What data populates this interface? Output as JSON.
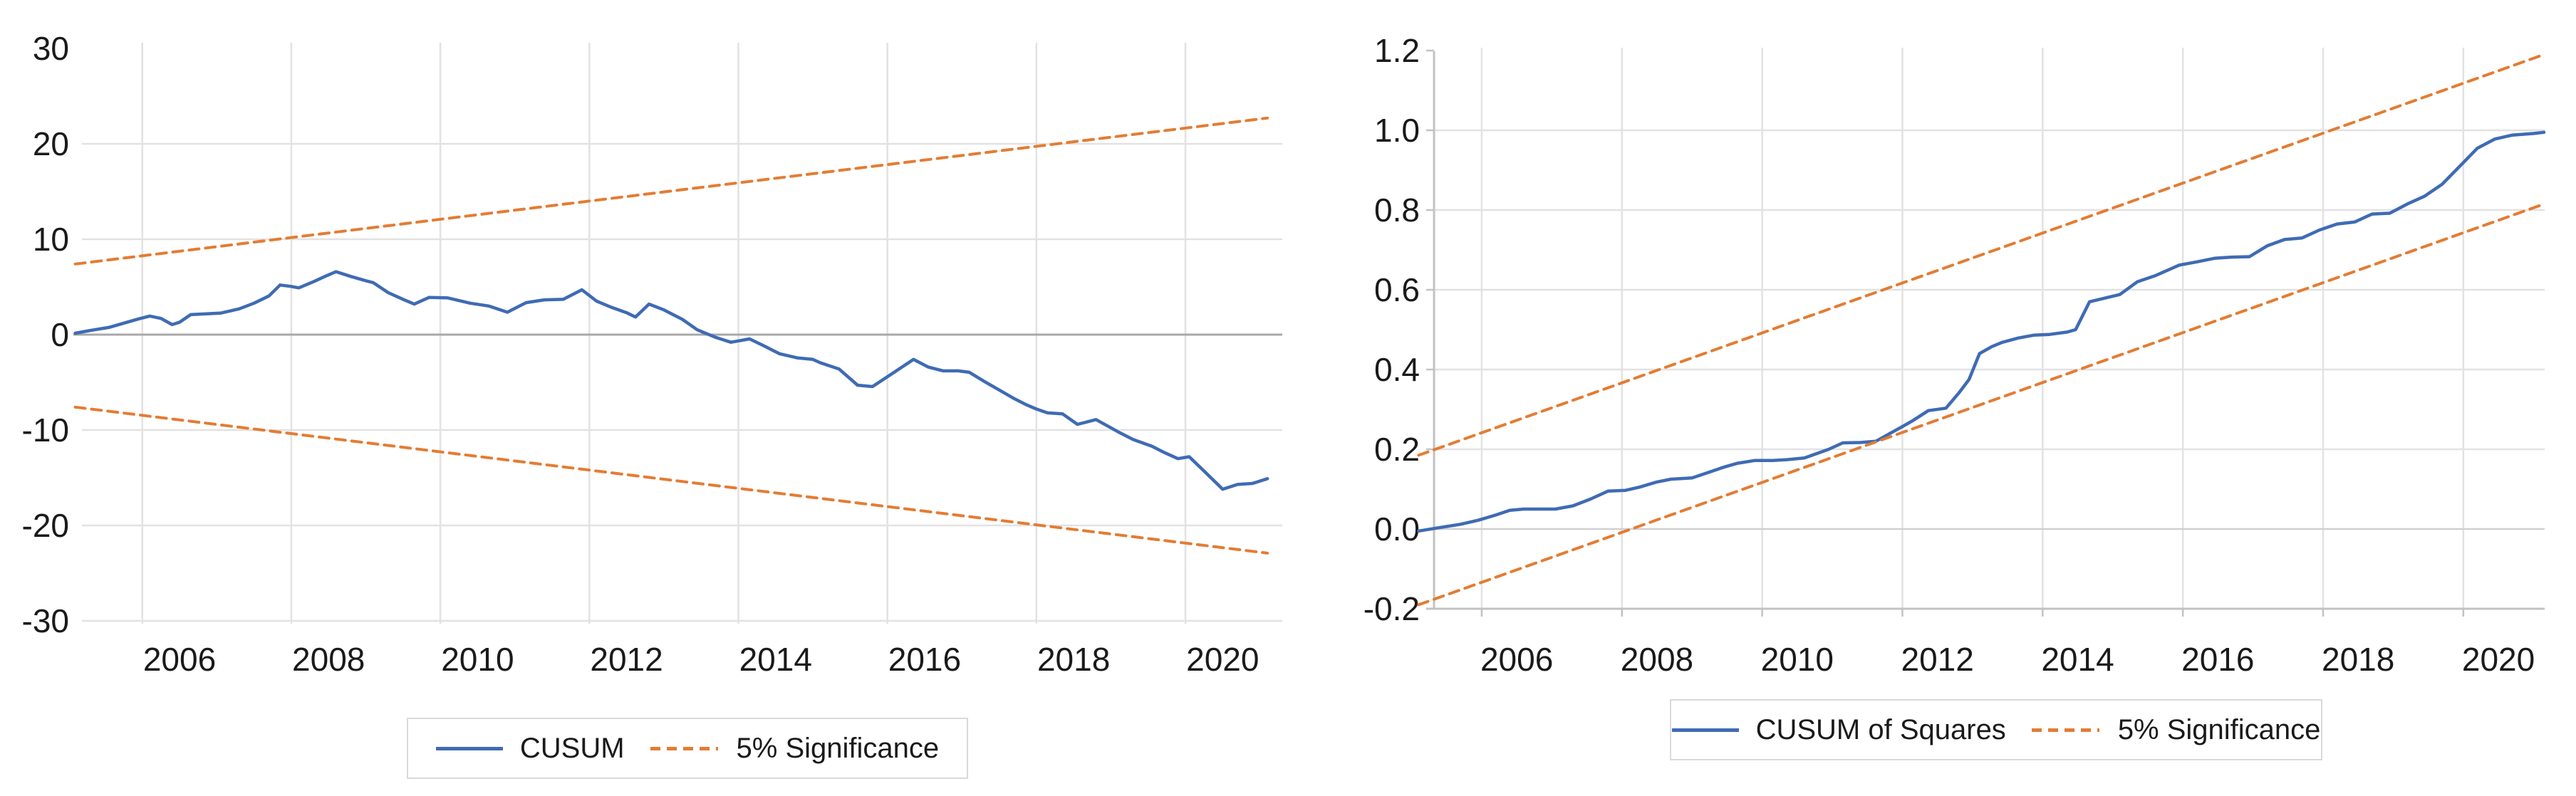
{
  "page": {
    "background": "#FFFFFF"
  },
  "colors": {
    "series_blue": "#3F6BB4",
    "series_orange": "#E37C33",
    "gridline": "#E2E2E2",
    "axis_gray": "#C2C2C2",
    "zero_axis_left": "#A8A8A8",
    "zero_line_right": "#D0D0D0",
    "text": "#1A1A1A",
    "legend_border": "#D9D9D9"
  },
  "chart_data": [
    {
      "id": "left-cusum-chart",
      "type": "line",
      "title": "",
      "xlabel": "",
      "ylabel": "",
      "xlim": [
        2005.19,
        2021.3
      ],
      "ylim": [
        -30,
        30
      ],
      "grid": true,
      "legend_position": "bottom",
      "x_tick_years": [
        2006,
        2008,
        2010,
        2012,
        2014,
        2016,
        2018,
        2020
      ],
      "x_tick_labels": [
        "2006",
        "2008",
        "2010",
        "2012",
        "2014",
        "2016",
        "2018",
        "2020"
      ],
      "y_tick_values": [
        30,
        20,
        10,
        0,
        -10,
        -20,
        -30
      ],
      "y_tick_labels": [
        "30",
        "20",
        "10",
        "0",
        "-10",
        "-20",
        "-30"
      ],
      "legend_items": [
        {
          "label": "CUSUM",
          "style": "solid",
          "color_key": "series_blue"
        },
        {
          "label": "5% Significance",
          "style": "dashed",
          "color_key": "series_orange"
        }
      ],
      "series": [
        {
          "name": "CUSUM",
          "style": "solid",
          "color_key": "series_blue",
          "points": [
            [
              2005.1,
              0.15
            ],
            [
              2005.35,
              0.5
            ],
            [
              2005.55,
              0.75
            ],
            [
              2005.75,
              1.2
            ],
            [
              2005.95,
              1.65
            ],
            [
              2006.1,
              1.95
            ],
            [
              2006.25,
              1.7
            ],
            [
              2006.4,
              1.05
            ],
            [
              2006.5,
              1.3
            ],
            [
              2006.65,
              2.1
            ],
            [
              2007.05,
              2.25
            ],
            [
              2007.3,
              2.7
            ],
            [
              2007.5,
              3.3
            ],
            [
              2007.7,
              4.05
            ],
            [
              2007.85,
              5.2
            ],
            [
              2008.0,
              5.05
            ],
            [
              2008.1,
              4.9
            ],
            [
              2008.3,
              5.55
            ],
            [
              2008.45,
              6.1
            ],
            [
              2008.6,
              6.6
            ],
            [
              2008.8,
              6.1
            ],
            [
              2009.0,
              5.65
            ],
            [
              2009.1,
              5.45
            ],
            [
              2009.3,
              4.4
            ],
            [
              2009.5,
              3.7
            ],
            [
              2009.65,
              3.2
            ],
            [
              2009.85,
              3.9
            ],
            [
              2010.1,
              3.85
            ],
            [
              2010.4,
              3.3
            ],
            [
              2010.65,
              3.0
            ],
            [
              2010.9,
              2.35
            ],
            [
              2011.15,
              3.35
            ],
            [
              2011.4,
              3.65
            ],
            [
              2011.65,
              3.7
            ],
            [
              2011.9,
              4.7
            ],
            [
              2012.1,
              3.5
            ],
            [
              2012.3,
              2.85
            ],
            [
              2012.5,
              2.3
            ],
            [
              2012.62,
              1.85
            ],
            [
              2012.8,
              3.2
            ],
            [
              2013.0,
              2.6
            ],
            [
              2013.25,
              1.6
            ],
            [
              2013.45,
              0.5
            ],
            [
              2013.7,
              -0.3
            ],
            [
              2013.9,
              -0.8
            ],
            [
              2014.15,
              -0.45
            ],
            [
              2014.35,
              -1.2
            ],
            [
              2014.55,
              -2.0
            ],
            [
              2014.8,
              -2.45
            ],
            [
              2015.0,
              -2.6
            ],
            [
              2015.1,
              -2.95
            ],
            [
              2015.35,
              -3.6
            ],
            [
              2015.6,
              -5.3
            ],
            [
              2015.8,
              -5.45
            ],
            [
              2016.1,
              -3.9
            ],
            [
              2016.35,
              -2.6
            ],
            [
              2016.55,
              -3.4
            ],
            [
              2016.75,
              -3.8
            ],
            [
              2016.95,
              -3.8
            ],
            [
              2017.1,
              -3.95
            ],
            [
              2017.3,
              -4.9
            ],
            [
              2017.5,
              -5.8
            ],
            [
              2017.7,
              -6.7
            ],
            [
              2017.85,
              -7.3
            ],
            [
              2018.0,
              -7.8
            ],
            [
              2018.15,
              -8.2
            ],
            [
              2018.35,
              -8.3
            ],
            [
              2018.55,
              -9.4
            ],
            [
              2018.8,
              -8.9
            ],
            [
              2019.1,
              -10.2
            ],
            [
              2019.3,
              -11.0
            ],
            [
              2019.55,
              -11.7
            ],
            [
              2019.7,
              -12.3
            ],
            [
              2019.9,
              -13.0
            ],
            [
              2020.05,
              -12.8
            ],
            [
              2020.25,
              -14.3
            ],
            [
              2020.5,
              -16.2
            ],
            [
              2020.7,
              -15.7
            ],
            [
              2020.9,
              -15.6
            ],
            [
              2021.1,
              -15.1
            ]
          ]
        },
        {
          "name": "5% Significance (upper)",
          "style": "dashed",
          "color_key": "series_orange",
          "points": [
            [
              2005.1,
              7.4
            ],
            [
              2021.1,
              22.7
            ]
          ]
        },
        {
          "name": "5% Significance (lower)",
          "style": "dashed",
          "color_key": "series_orange",
          "points": [
            [
              2005.1,
              -7.6
            ],
            [
              2021.1,
              -22.9
            ]
          ]
        }
      ]
    },
    {
      "id": "right-cusumsq-chart",
      "type": "line",
      "title": "",
      "xlabel": "",
      "ylabel": "",
      "xlim": [
        2005.32,
        2021.16
      ],
      "ylim": [
        -0.2,
        1.2
      ],
      "grid": true,
      "legend_position": "bottom",
      "x_tick_years": [
        2006,
        2008,
        2010,
        2012,
        2014,
        2016,
        2018,
        2020
      ],
      "x_tick_labels": [
        "2006",
        "2008",
        "2010",
        "2012",
        "2014",
        "2016",
        "2018",
        "2020"
      ],
      "y_tick_values": [
        1.2,
        1.0,
        0.8,
        0.6,
        0.4,
        0.2,
        0.0,
        -0.2
      ],
      "y_tick_labels": [
        "1.2",
        "1.0",
        "0.8",
        "0.6",
        "0.4",
        "0.2",
        "0.0",
        "-0.2"
      ],
      "legend_items": [
        {
          "label": "CUSUM of Squares",
          "style": "solid",
          "color_key": "series_blue"
        },
        {
          "label": "5% Significance",
          "style": "dashed",
          "color_key": "series_orange"
        }
      ],
      "series": [
        {
          "name": "CUSUM of Squares",
          "style": "solid",
          "color_key": "series_blue",
          "points": [
            [
              2005.1,
              -0.005
            ],
            [
              2005.45,
              0.005
            ],
            [
              2005.7,
              0.012
            ],
            [
              2005.95,
              0.022
            ],
            [
              2006.2,
              0.035
            ],
            [
              2006.4,
              0.047
            ],
            [
              2006.6,
              0.05
            ],
            [
              2007.05,
              0.05
            ],
            [
              2007.3,
              0.058
            ],
            [
              2007.55,
              0.075
            ],
            [
              2007.8,
              0.095
            ],
            [
              2008.05,
              0.097
            ],
            [
              2008.25,
              0.105
            ],
            [
              2008.5,
              0.118
            ],
            [
              2008.7,
              0.125
            ],
            [
              2009.0,
              0.128
            ],
            [
              2009.2,
              0.14
            ],
            [
              2009.45,
              0.155
            ],
            [
              2009.65,
              0.165
            ],
            [
              2009.9,
              0.172
            ],
            [
              2010.15,
              0.172
            ],
            [
              2010.35,
              0.174
            ],
            [
              2010.6,
              0.178
            ],
            [
              2010.95,
              0.2
            ],
            [
              2011.15,
              0.216
            ],
            [
              2011.4,
              0.217
            ],
            [
              2011.62,
              0.22
            ],
            [
              2012.0,
              0.257
            ],
            [
              2012.15,
              0.272
            ],
            [
              2012.37,
              0.297
            ],
            [
              2012.62,
              0.303
            ],
            [
              2012.8,
              0.34
            ],
            [
              2012.95,
              0.375
            ],
            [
              2013.1,
              0.44
            ],
            [
              2013.27,
              0.457
            ],
            [
              2013.42,
              0.468
            ],
            [
              2013.65,
              0.479
            ],
            [
              2013.87,
              0.486
            ],
            [
              2014.1,
              0.488
            ],
            [
              2014.35,
              0.494
            ],
            [
              2014.47,
              0.5
            ],
            [
              2014.67,
              0.57
            ],
            [
              2015.1,
              0.588
            ],
            [
              2015.35,
              0.62
            ],
            [
              2015.6,
              0.635
            ],
            [
              2015.95,
              0.662
            ],
            [
              2016.2,
              0.67
            ],
            [
              2016.45,
              0.679
            ],
            [
              2016.7,
              0.682
            ],
            [
              2016.95,
              0.683
            ],
            [
              2017.2,
              0.71
            ],
            [
              2017.45,
              0.726
            ],
            [
              2017.7,
              0.73
            ],
            [
              2017.95,
              0.75
            ],
            [
              2018.2,
              0.765
            ],
            [
              2018.45,
              0.77
            ],
            [
              2018.7,
              0.79
            ],
            [
              2018.95,
              0.792
            ],
            [
              2019.2,
              0.815
            ],
            [
              2019.45,
              0.835
            ],
            [
              2019.7,
              0.865
            ],
            [
              2019.95,
              0.91
            ],
            [
              2020.2,
              0.955
            ],
            [
              2020.45,
              0.978
            ],
            [
              2020.7,
              0.988
            ],
            [
              2021.0,
              0.992
            ],
            [
              2021.15,
              0.995
            ]
          ]
        },
        {
          "name": "5% Significance (upper)",
          "style": "dashed",
          "color_key": "series_orange",
          "points": [
            [
              2005.1,
              0.185
            ],
            [
              2021.15,
              1.19
            ]
          ]
        },
        {
          "name": "5% Significance (lower)",
          "style": "dashed",
          "color_key": "series_orange",
          "points": [
            [
              2005.1,
              -0.19
            ],
            [
              2021.15,
              0.815
            ]
          ]
        }
      ]
    }
  ]
}
